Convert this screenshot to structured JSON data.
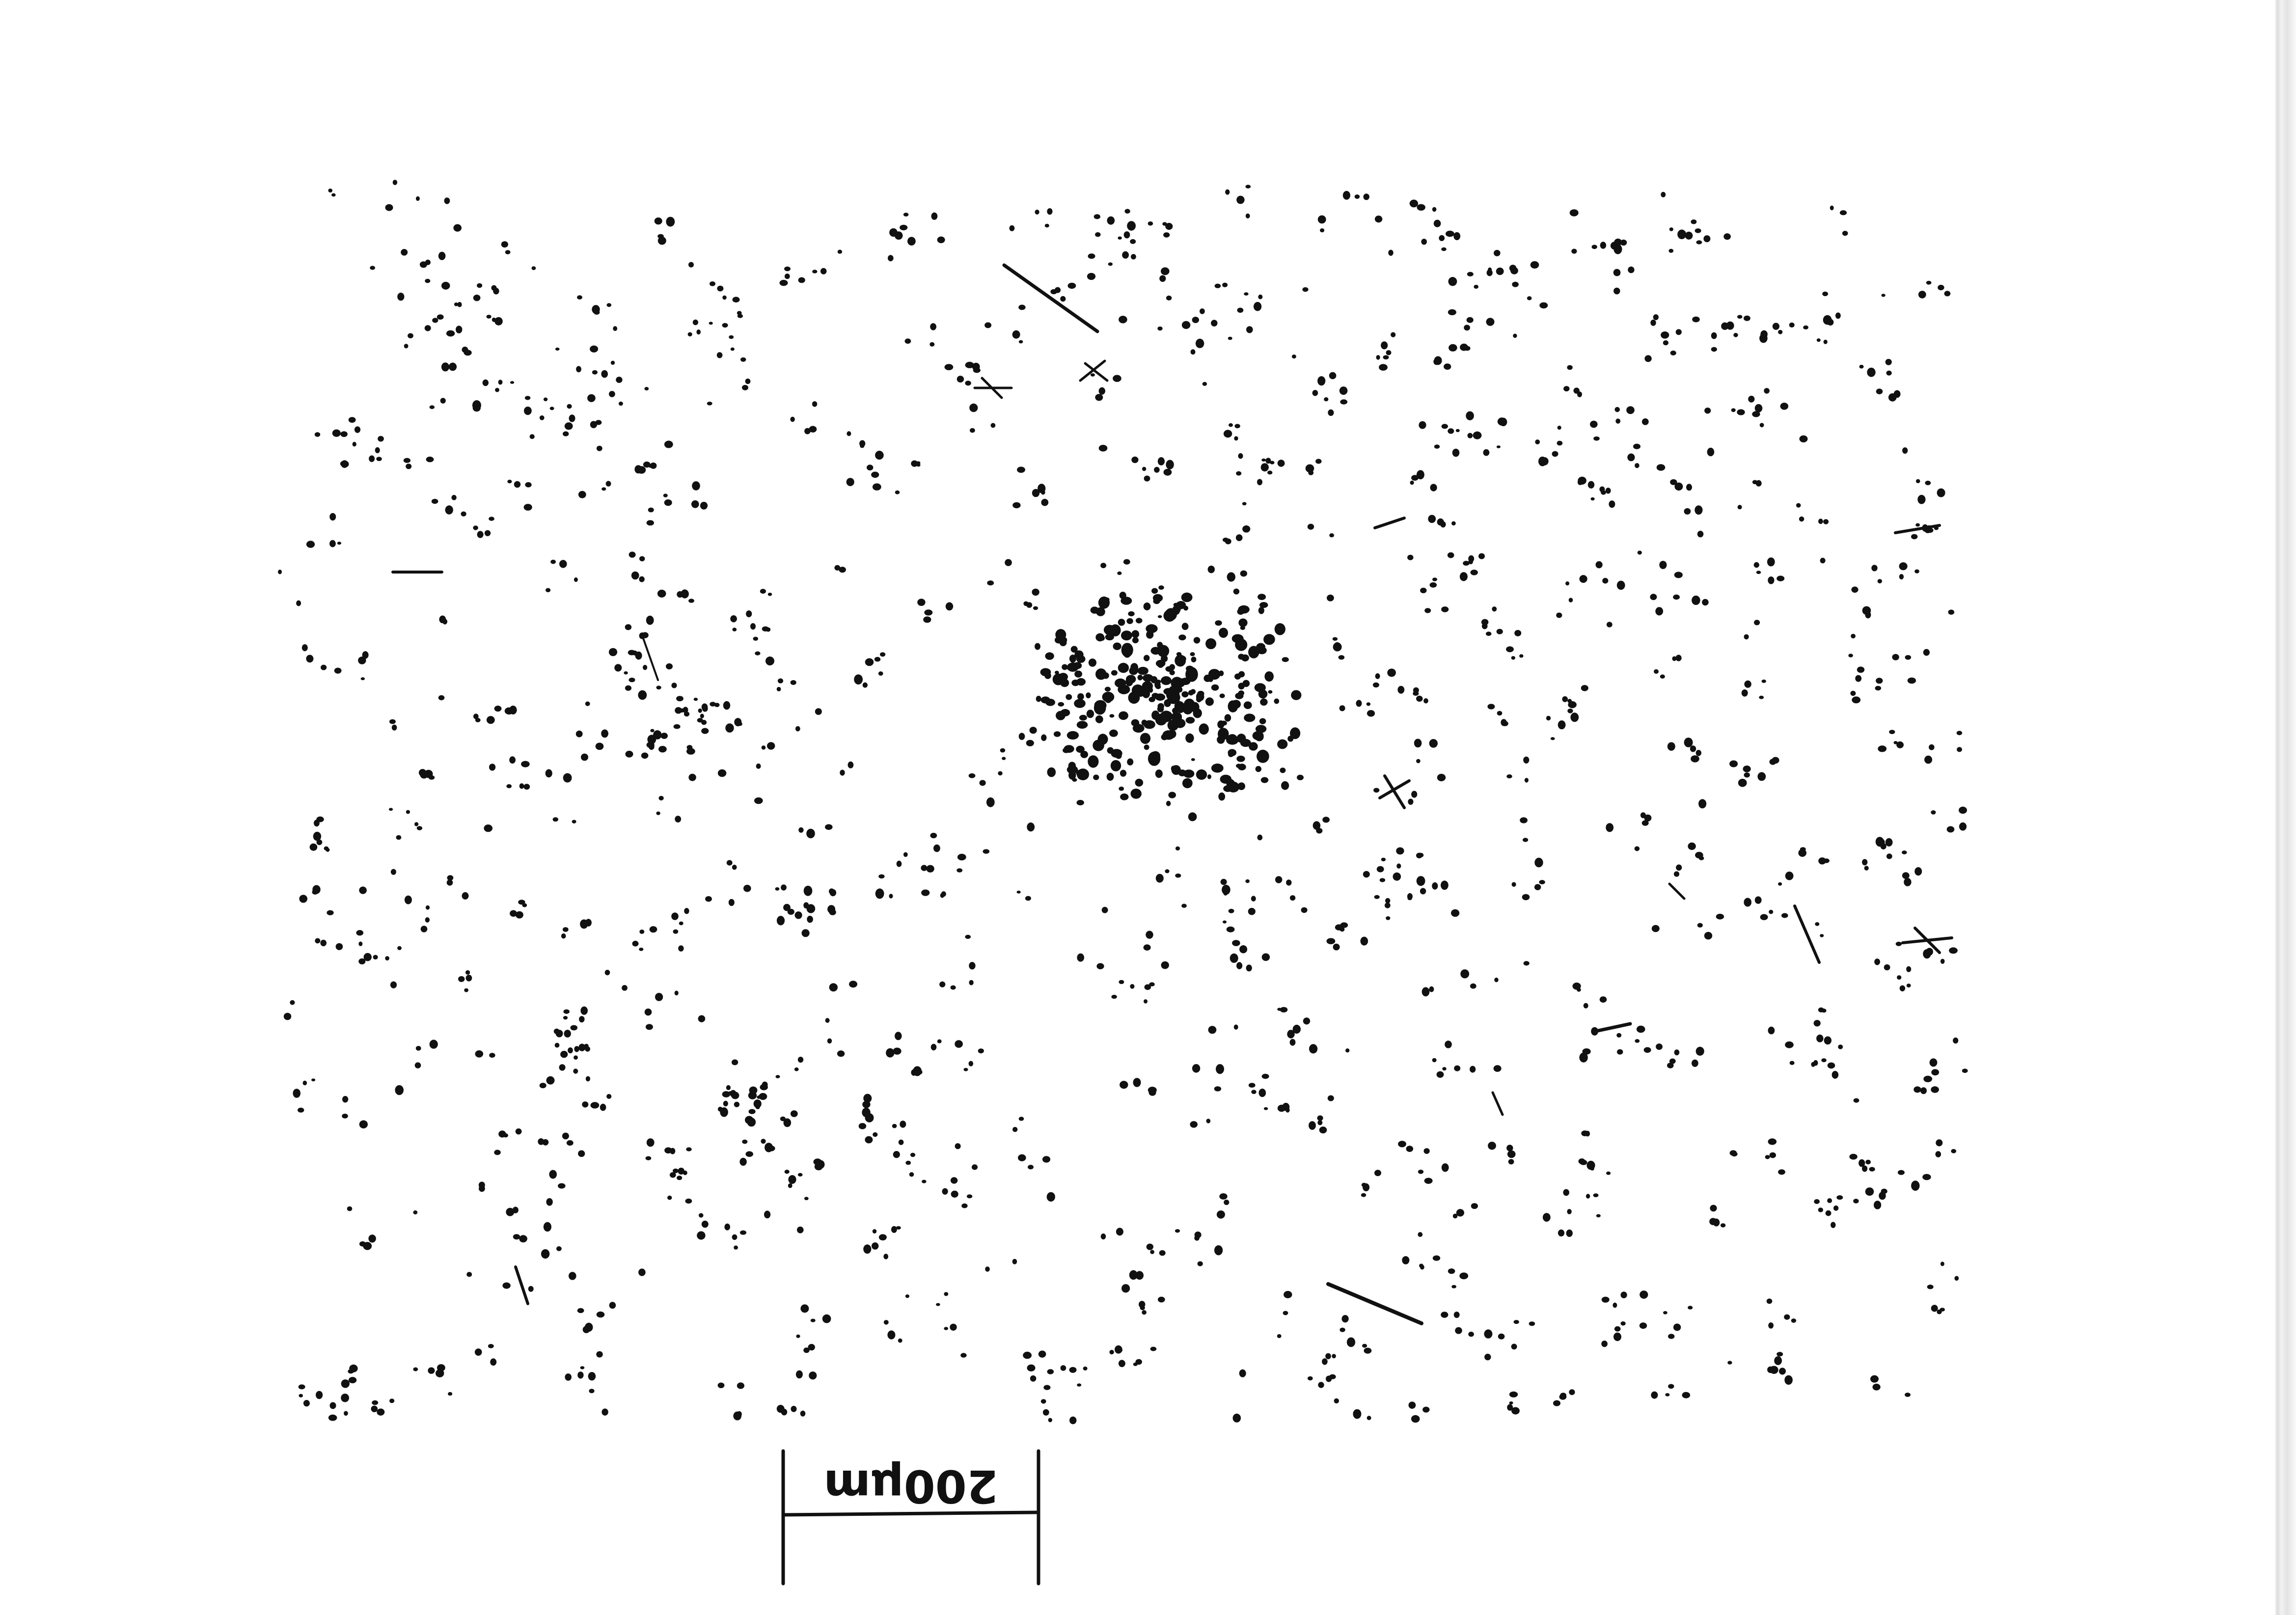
{
  "scale_bar": {
    "label": "200μm"
  },
  "colors": {
    "ink": "#111111",
    "paper": "#ffffff",
    "scan_edge": "#dcdcdc"
  }
}
